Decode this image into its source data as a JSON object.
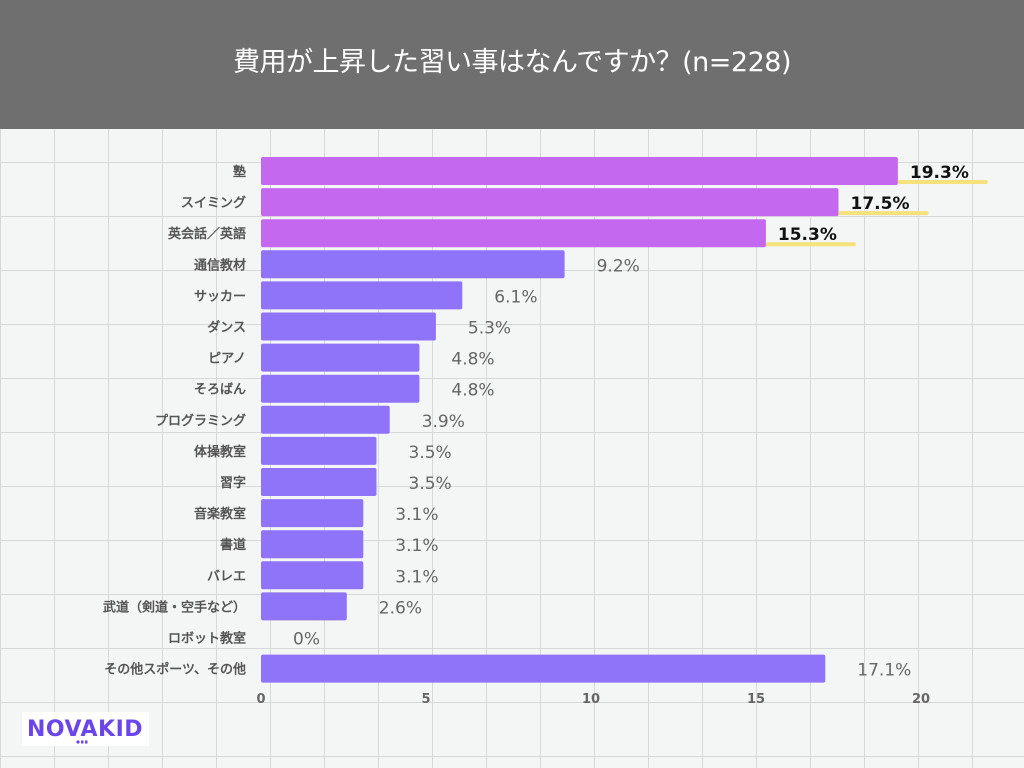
{
  "header": {
    "title": "費用が上昇した習い事はなんですか？(n=228)"
  },
  "logo": {
    "text": "NOVAKID",
    "color": "#6a45ea"
  },
  "colors": {
    "top3_bar": "#c568f0",
    "bar": "#8f73f8",
    "highlight_underline": "#f5e27a",
    "header_bg": "#6f6f6f"
  },
  "chart_data": {
    "type": "bar",
    "orientation": "horizontal",
    "title": "費用が上昇した習い事はなんですか？(n=228)",
    "xlabel": "",
    "ylabel": "",
    "xlim": [
      0,
      20
    ],
    "xticks": [
      "0",
      "5",
      "10",
      "15",
      "20"
    ],
    "grid": false,
    "categories": [
      "塾",
      "スイミング",
      "英会話／英語",
      "通信教材",
      "サッカー",
      "ダンス",
      "ピアノ",
      "そろばん",
      "プログラミング",
      "体操教室",
      "習字",
      "音楽教室",
      "書道",
      "バレエ",
      "武道（剣道・空手など）",
      "ロボット教室",
      "その他スポーツ、その他"
    ],
    "values": [
      19.3,
      17.5,
      15.3,
      9.2,
      6.1,
      5.3,
      4.8,
      4.8,
      3.9,
      3.5,
      3.5,
      3.1,
      3.1,
      3.1,
      2.6,
      0,
      17.1
    ],
    "value_labels": [
      "19.3%",
      "17.5%",
      "15.3%",
      "9.2%",
      "6.1%",
      "5.3%",
      "4.8%",
      "4.8%",
      "3.9%",
      "3.5%",
      "3.5%",
      "3.1%",
      "3.1%",
      "3.1%",
      "2.6%",
      "0%",
      "17.1%"
    ],
    "highlighted_top": 3
  }
}
